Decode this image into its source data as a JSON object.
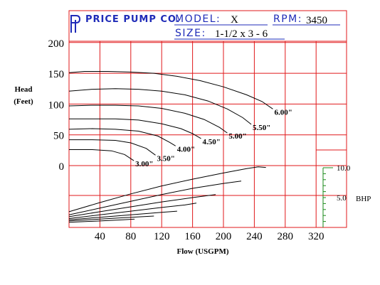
{
  "header": {
    "brand": "PRICE PUMP CO.",
    "model_label": "MODEL:",
    "model_value": "X",
    "rpm_label": "RPM:",
    "rpm_value": "3450",
    "size_label": "SIZE:",
    "size_value": "1-1/2 x 3 - 6"
  },
  "colors": {
    "grid": "#e0191b",
    "brand_blue": "#1f2bb8",
    "bhp_scale": "#1a8a1a",
    "curve": "#000000"
  },
  "chart_data": {
    "type": "line",
    "xlabel": "Flow (USGPM)",
    "ylabel_line1": "Head",
    "ylabel_line2": "(Feet)",
    "x_ticks": [
      "40",
      "80",
      "120",
      "160",
      "200",
      "240",
      "280",
      "320"
    ],
    "x_tick_values": [
      40,
      80,
      120,
      160,
      200,
      240,
      280,
      320
    ],
    "y_ticks": [
      "200",
      "150",
      "100",
      "50",
      "0"
    ],
    "y_tick_values": [
      200,
      150,
      100,
      50,
      0
    ],
    "xlim": [
      0,
      340
    ],
    "ylim": [
      -100,
      210
    ],
    "grid": true,
    "head_series": [
      {
        "name": "6.00\"",
        "points": [
          [
            0,
            151
          ],
          [
            20,
            153
          ],
          [
            50,
            153
          ],
          [
            80,
            152
          ],
          [
            110,
            150
          ],
          [
            140,
            145
          ],
          [
            170,
            138
          ],
          [
            200,
            128
          ],
          [
            230,
            115
          ],
          [
            250,
            104
          ],
          [
            264,
            92
          ]
        ]
      },
      {
        "name": "5.50\"",
        "points": [
          [
            0,
            121
          ],
          [
            30,
            124
          ],
          [
            60,
            125
          ],
          [
            90,
            124
          ],
          [
            120,
            121
          ],
          [
            150,
            115
          ],
          [
            180,
            105
          ],
          [
            205,
            92
          ],
          [
            225,
            78
          ],
          [
            236,
            67
          ]
        ]
      },
      {
        "name": "5.00\"",
        "points": [
          [
            0,
            97
          ],
          [
            30,
            98
          ],
          [
            60,
            98
          ],
          [
            90,
            97
          ],
          [
            120,
            93
          ],
          [
            150,
            85
          ],
          [
            175,
            75
          ],
          [
            195,
            62
          ],
          [
            205,
            53
          ]
        ]
      },
      {
        "name": "4.50\"",
        "points": [
          [
            0,
            76
          ],
          [
            30,
            76
          ],
          [
            60,
            76
          ],
          [
            90,
            74
          ],
          [
            120,
            68
          ],
          [
            145,
            60
          ],
          [
            160,
            52
          ],
          [
            171,
            44
          ]
        ]
      },
      {
        "name": "4.00\"",
        "points": [
          [
            0,
            59
          ],
          [
            30,
            60
          ],
          [
            60,
            59
          ],
          [
            90,
            56
          ],
          [
            115,
            48
          ],
          [
            130,
            38
          ],
          [
            138,
            32
          ]
        ]
      },
      {
        "name": "3.50\"",
        "points": [
          [
            0,
            42
          ],
          [
            30,
            42
          ],
          [
            60,
            41
          ],
          [
            80,
            37
          ],
          [
            100,
            28
          ],
          [
            112,
            17
          ]
        ]
      },
      {
        "name": "3.00\"",
        "points": [
          [
            0,
            26
          ],
          [
            30,
            26
          ],
          [
            55,
            24
          ],
          [
            72,
            18
          ],
          [
            84,
            8
          ]
        ]
      }
    ],
    "bhp_series": [
      {
        "name": "6.00\"",
        "points": [
          [
            0,
            -75
          ],
          [
            40,
            -60
          ],
          [
            80,
            -46
          ],
          [
            120,
            -33
          ],
          [
            160,
            -22
          ],
          [
            200,
            -12
          ],
          [
            230,
            -5
          ],
          [
            245,
            -2
          ],
          [
            255,
            -3
          ]
        ]
      },
      {
        "name": "5.50\"",
        "points": [
          [
            0,
            -80
          ],
          [
            40,
            -69
          ],
          [
            80,
            -58
          ],
          [
            120,
            -47
          ],
          [
            160,
            -37
          ],
          [
            200,
            -29
          ],
          [
            223,
            -25
          ]
        ]
      },
      {
        "name": "5.00\"",
        "points": [
          [
            0,
            -83
          ],
          [
            40,
            -75
          ],
          [
            80,
            -67
          ],
          [
            120,
            -59
          ],
          [
            160,
            -52
          ],
          [
            190,
            -47
          ]
        ]
      },
      {
        "name": "4.50\"",
        "points": [
          [
            0,
            -86
          ],
          [
            40,
            -80
          ],
          [
            80,
            -74
          ],
          [
            120,
            -68
          ],
          [
            150,
            -64
          ],
          [
            165,
            -61
          ]
        ]
      },
      {
        "name": "4.00\"",
        "points": [
          [
            0,
            -88
          ],
          [
            40,
            -84
          ],
          [
            80,
            -80
          ],
          [
            120,
            -76
          ],
          [
            140,
            -74
          ]
        ]
      },
      {
        "name": "3.50\"",
        "points": [
          [
            0,
            -90
          ],
          [
            40,
            -87
          ],
          [
            80,
            -84
          ],
          [
            110,
            -82
          ]
        ]
      },
      {
        "name": "3.00\"",
        "points": [
          [
            0,
            -92
          ],
          [
            40,
            -90
          ],
          [
            70,
            -88
          ],
          [
            85,
            -87
          ]
        ]
      }
    ],
    "bhp_scale": {
      "label": "BHP",
      "tick_labels": [
        "10.0",
        "5.0"
      ],
      "tick_values": [
        10,
        5
      ],
      "minor_steps": 10
    }
  }
}
